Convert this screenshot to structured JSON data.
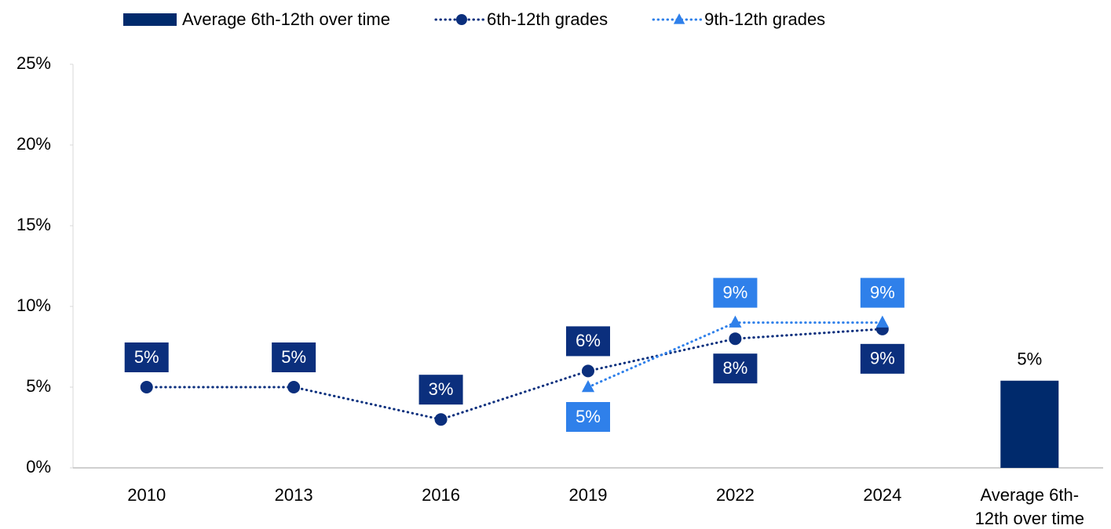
{
  "chart_data": {
    "type": "line",
    "categories": [
      "2010",
      "2013",
      "2016",
      "2019",
      "2022",
      "2024",
      "Average 6th-12th over time"
    ],
    "series": [
      {
        "name": "Average 6th-12th over time",
        "type": "bar",
        "color": "#002a6c",
        "values": [
          null,
          null,
          null,
          null,
          null,
          null,
          5.4
        ],
        "value_labels": [
          null,
          null,
          null,
          null,
          null,
          null,
          "5%"
        ]
      },
      {
        "name": "6th-12th grades",
        "type": "line",
        "marker": "circle",
        "color": "#0b2f7d",
        "values": [
          5,
          5,
          3,
          6,
          8,
          8.6,
          null
        ],
        "value_labels": [
          "5%",
          "5%",
          "3%",
          "6%",
          "8%",
          "9%",
          null
        ]
      },
      {
        "name": "9th-12th grades",
        "type": "line",
        "marker": "triangle",
        "color": "#2f80ea",
        "values": [
          null,
          null,
          null,
          5,
          9,
          9,
          null
        ],
        "value_labels": [
          null,
          null,
          null,
          "5%",
          "9%",
          "9%",
          null
        ]
      }
    ],
    "ylim": [
      0,
      25
    ],
    "yticks": [
      {
        "value": 0,
        "label": "0%"
      },
      {
        "value": 5,
        "label": "5%"
      },
      {
        "value": 10,
        "label": "10%"
      },
      {
        "value": 15,
        "label": "15%"
      },
      {
        "value": 20,
        "label": "20%"
      },
      {
        "value": 25,
        "label": "25%"
      }
    ],
    "grid": false,
    "legend": "top"
  }
}
